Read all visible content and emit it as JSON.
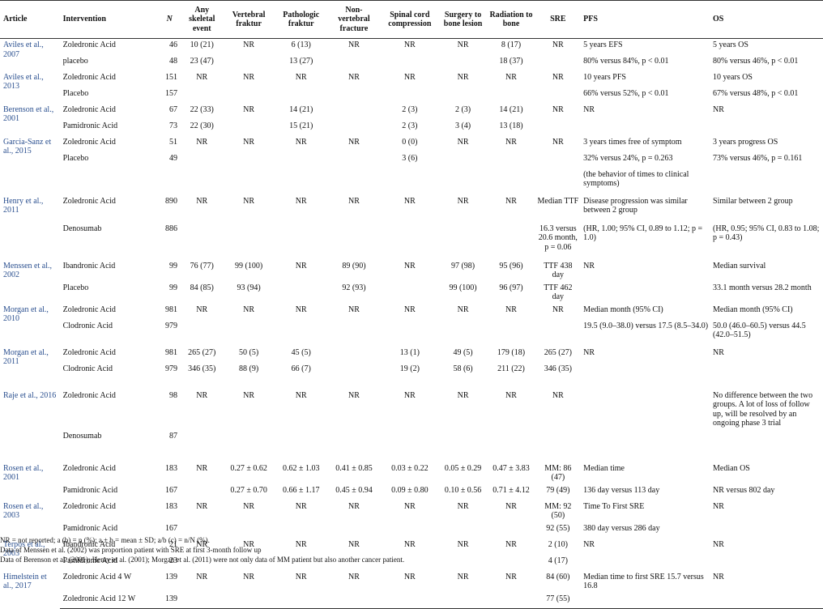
{
  "headers": [
    "Article",
    "Intervention",
    "N",
    "Any skeletal event",
    "Vertebral fraktur",
    "Pathologic fraktur",
    "Non-vertebral fracture",
    "Spinal cord compression",
    "Surgery to bone lesion",
    "Radiation to bone",
    "SRE",
    "PFS",
    "OS"
  ],
  "groups": [
    {
      "article": "Aviles et al., 2007",
      "rows": [
        [
          "Zoledronic Acid",
          "46",
          "10 (21)",
          "NR",
          "6 (13)",
          "NR",
          "NR",
          "NR",
          "8 (17)",
          "NR",
          "5 years EFS",
          "5 years OS"
        ],
        [
          "placebo",
          "48",
          "23 (47)",
          "",
          "13 (27)",
          "",
          "",
          "",
          "18 (37)",
          "",
          "80% versus 84%, p < 0.01",
          "80% versus 46%, p < 0.01"
        ]
      ]
    },
    {
      "article": "Aviles et al., 2013",
      "rows": [
        [
          "Zoledronic Acid",
          "151",
          "NR",
          "NR",
          "NR",
          "NR",
          "NR",
          "NR",
          "NR",
          "NR",
          "10 years PFS",
          "10 years OS"
        ],
        [
          "Placebo",
          "157",
          "",
          "",
          "",
          "",
          "",
          "",
          "",
          "",
          "66% versus 52%, p < 0.01",
          "67% versus 48%, p < 0.01"
        ]
      ]
    },
    {
      "article": "Berenson et al., 2001",
      "rows": [
        [
          "Zoledronic Acid",
          "67",
          "22 (33)",
          "NR",
          "14 (21)",
          "",
          "2 (3)",
          "2 (3)",
          "14 (21)",
          "NR",
          "NR",
          "NR"
        ],
        [
          "Pamidronic Acid",
          "73",
          "22 (30)",
          "",
          "15 (21)",
          "",
          "2 (3)",
          "3 (4)",
          "13 (18)",
          "",
          "",
          ""
        ]
      ]
    },
    {
      "article": "Garcia-Sanz et al., 2015",
      "rows": [
        [
          "Zoledronic Acid",
          "51",
          "NR",
          "NR",
          "NR",
          "NR",
          "0 (0)",
          "NR",
          "NR",
          "NR",
          "3 years times free of symptom",
          "3 years progress OS"
        ],
        [
          "Placebo",
          "49",
          "",
          "",
          "",
          "",
          "3 (6)",
          "",
          "",
          "",
          "32% versus 24%, p = 0.263",
          "73% versus 46%, p = 0.161"
        ],
        [
          "",
          "",
          "",
          "",
          "",
          "",
          "",
          "",
          "",
          "",
          "(the behavior of times to clinical symptoms)",
          ""
        ]
      ]
    },
    {
      "article": "Henry et al., 2011",
      "rows": [
        [
          "Zoledronic Acid",
          "890",
          "NR",
          "NR",
          "NR",
          "NR",
          "NR",
          "NR",
          "NR",
          "Median TTF",
          "Disease progression was similar between 2 group",
          "Similar between 2 group"
        ],
        [
          "Denosumab",
          "886",
          "",
          "",
          "",
          "",
          "",
          "",
          "",
          "16.3 versus 20.6 month, p = 0.06",
          "(HR, 1.00; 95% CI, 0.89 to 1.12; p = 1.0)",
          "(HR, 0.95; 95% CI, 0.83 to 1.08; p = 0.43)"
        ]
      ]
    },
    {
      "article": "Menssen et al., 2002",
      "rows": [
        [
          "Ibandronic Acid",
          "99",
          "76 (77)",
          "99 (100)",
          "NR",
          "89 (90)",
          "NR",
          "97 (98)",
          "95 (96)",
          "TTF 438 day",
          "NR",
          "Median survival"
        ],
        [
          "Placebo",
          "99",
          "84 (85)",
          "93 (94)",
          "",
          "92 (93)",
          "",
          "99 (100)",
          "96 (97)",
          "TTF 462 day",
          "",
          "33.1 month versus 28.2 month"
        ]
      ]
    },
    {
      "article": "Morgan et al., 2010",
      "rows": [
        [
          "Zoledronic Acid",
          "981",
          "NR",
          "NR",
          "NR",
          "NR",
          "NR",
          "NR",
          "NR",
          "NR",
          "Median month (95% CI)",
          "Median month (95% CI)"
        ],
        [
          "Clodronic Acid",
          "979",
          "",
          "",
          "",
          "",
          "",
          "",
          "",
          "",
          "19.5 (9.0–38.0) versus 17.5 (8.5–34.0)",
          "50.0 (46.0–60.5) versus 44.5 (42.0–51.5)"
        ]
      ]
    },
    {
      "article": "Morgan et al., 2011",
      "rows": [
        [
          "Zoledronic Acid",
          "981",
          "265 (27)",
          "50 (5)",
          "45 (5)",
          "",
          "13 (1)",
          "49 (5)",
          "179 (18)",
          "265 (27)",
          "NR",
          "NR"
        ],
        [
          "Clodronic Acid",
          "979",
          "346 (35)",
          "88 (9)",
          "66 (7)",
          "",
          "19 (2)",
          "58 (6)",
          "211 (22)",
          "346 (35)",
          "",
          ""
        ]
      ]
    },
    {
      "article": "Raje et al., 2016",
      "rows": [
        [
          "Zoledronic Acid",
          "98",
          "NR",
          "NR",
          "NR",
          "NR",
          "NR",
          "NR",
          "NR",
          "NR",
          "",
          "No difference between the two groups. A lot of loss of follow up, will be resolved by an ongoing phase 3 trial"
        ],
        [
          "Denosumab",
          "87",
          "",
          "",
          "",
          "",
          "",
          "",
          "",
          "",
          "",
          ""
        ]
      ]
    },
    {
      "article": "Rosen et al., 2001",
      "rows": [
        [
          "Zoledronic Acid",
          "183",
          "NR",
          "0.27 ± 0.62",
          "0.62 ± 1.03",
          "0.41 ± 0.85",
          "0.03 ± 0.22",
          "0.05 ± 0.29",
          "0.47 ± 3.83",
          "MM: 86 (47)",
          "Median time",
          "Median OS"
        ],
        [
          "Pamidronic Acid",
          "167",
          "",
          "0.27 ± 0.70",
          "0.66 ± 1.17",
          "0.45 ± 0.94",
          "0.09 ± 0.80",
          "0.10 ± 0.56",
          "0.71 ± 4.12",
          "79 (49)",
          "136 day versus 113 day",
          "NR versus 802 day"
        ]
      ]
    },
    {
      "article": "Rosen et al., 2003",
      "rows": [
        [
          "Zoledronic Acid",
          "183",
          "NR",
          "NR",
          "NR",
          "NR",
          "NR",
          "NR",
          "NR",
          "MM: 92 (50)",
          "Time To First SRE",
          "NR"
        ],
        [
          "Pamidronic Acid",
          "167",
          "",
          "",
          "",
          "",
          "",
          "",
          "",
          "92 (55)",
          "380 day versus 286 day",
          ""
        ]
      ]
    },
    {
      "article": "Terpos et al., 2003",
      "rows": [
        [
          "Ibandronic Acid",
          "21",
          "NR",
          "NR",
          "NR",
          "NR",
          "NR",
          "NR",
          "NR",
          "2 (10)",
          "NR",
          "NR"
        ],
        [
          "Pamidronic Acid",
          "23",
          "",
          "",
          "",
          "",
          "",
          "",
          "",
          "4 (17)",
          "",
          ""
        ]
      ]
    },
    {
      "article": "Himelstein et al., 2017",
      "rows": [
        [
          "Zoledronic Acid 4 W",
          "139",
          "NR",
          "NR",
          "NR",
          "NR",
          "NR",
          "NR",
          "NR",
          "84 (60)",
          "Median time to first SRE 15.7 versus 16.8",
          "NR"
        ],
        [
          "Zoledronic Acid 12 W",
          "139",
          "",
          "",
          "",
          "",
          "",
          "",
          "",
          "77 (55)",
          "",
          ""
        ]
      ]
    }
  ],
  "footnotes": [
    "NR = not reported; a (b) = n (%); a ± b = mean ± SD; a/b (c) = n/N (%).",
    "Data of Menssen et al. (2002) was proportion patient with SRE at first 3-month follow up",
    "Data of Berenson et al. (2001); Henry et al. (2001); Morgan et al. (2011) were not only data of MM patient but also another cancer patient."
  ]
}
